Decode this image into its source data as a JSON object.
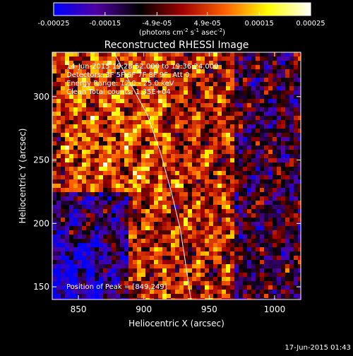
{
  "chart_data": {
    "type": "heatmap",
    "title": "Reconstructed RHESSI Image",
    "xlabel": "Heliocentric X (arcsec)",
    "ylabel": "Heliocentric Y (arcsec)",
    "xlim": [
      830,
      1020
    ],
    "ylim": [
      140,
      335
    ],
    "x_ticks": [
      "850",
      "900",
      "950",
      "1000"
    ],
    "x_tick_values": [
      850,
      900,
      950,
      1000
    ],
    "y_ticks": [
      "150",
      "200",
      "250",
      "300"
    ],
    "y_tick_values": [
      150,
      200,
      250,
      300
    ],
    "colorbar": {
      "tick_labels": [
        "-0.00025",
        "-0.00015",
        "-4.9e-05",
        "4.9e-05",
        "0.00015",
        "0.00025"
      ],
      "tick_values": [
        -0.00025,
        -0.00015,
        -4.9e-05,
        4.9e-05,
        0.00015,
        0.00025
      ],
      "range": [
        -0.00025,
        0.00025
      ],
      "units_text": "(photons cm",
      "units_exp1": "-2",
      "units_mid": " s",
      "units_exp2": "-1",
      "units_end": " asec",
      "units_exp3": "-2",
      "units_close": ")",
      "colors": [
        "#0000ff",
        "#5000a0",
        "#000000",
        "#a00000",
        "#ff6000",
        "#ffff00",
        "#ffffff"
      ]
    },
    "annotations": [
      "14-Jun-2015 19:28:52.000 to 19:36:24.000",
      "Detectors: 3F 5F 6F 7F 8F 9F, Att 0",
      "Energy Range: 12.0 - 25.0 keV",
      "Clean     Total counts: 1.35E+04"
    ],
    "peak_label": "Position of Peak = [849,249]",
    "peak": [
      849,
      249
    ],
    "limb_curve": [
      [
        877,
        335
      ],
      [
        890,
        310
      ],
      [
        903,
        285
      ],
      [
        913,
        255
      ],
      [
        921,
        225
      ],
      [
        928,
        195
      ],
      [
        932,
        168
      ],
      [
        936,
        140
      ]
    ]
  },
  "footer": {
    "timestamp": "17-Jun-2015 01:43"
  }
}
